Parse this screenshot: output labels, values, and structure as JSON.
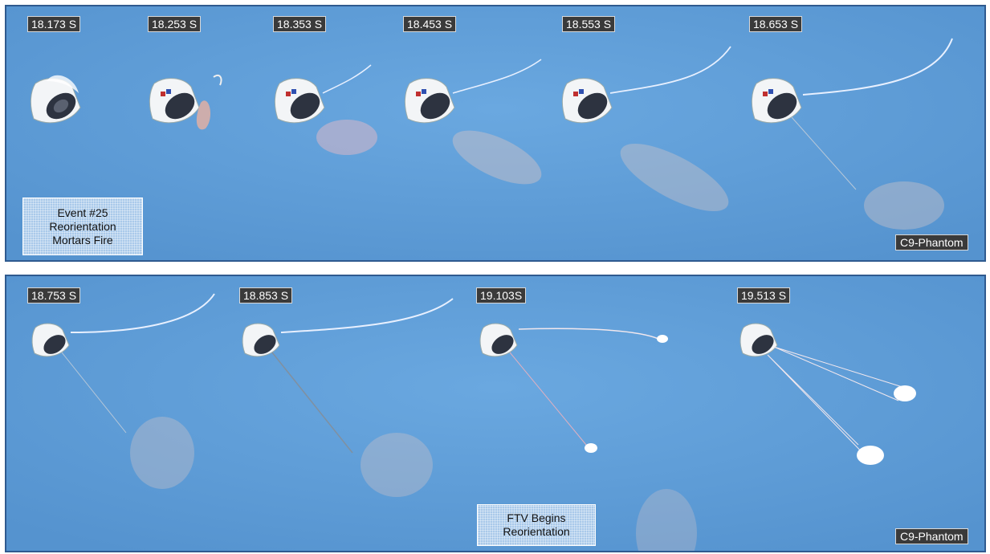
{
  "panels": [
    {
      "timestamps": [
        "18.173 S",
        "18.253 S",
        "18.353 S",
        "18.453 S",
        "18.553 S",
        "18.653 S"
      ],
      "event": [
        "Event #25",
        "Reorientation",
        "Mortars Fire"
      ],
      "camera": "C9-Phantom"
    },
    {
      "timestamps": [
        "18.753 S",
        "18.853 S",
        "19.103S",
        "19.513 S"
      ],
      "event": [
        "FTV  Begins",
        "Reorientation"
      ],
      "camera": "C9-Phantom"
    }
  ],
  "colors": {
    "sky": "#5f9fd8",
    "border": "#2f5a8f",
    "label_bg": "#3a3a3a"
  }
}
